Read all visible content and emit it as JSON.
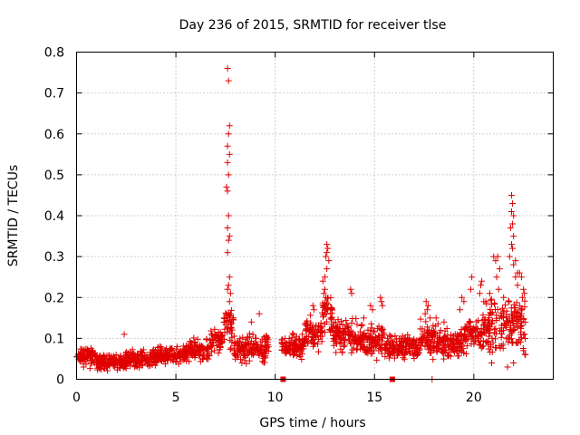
{
  "chart_data": {
    "type": "scatter",
    "marker": "+",
    "title": "Day 236 of 2015, SRMTID for receiver tlse",
    "xlabel": "GPS time / hours",
    "ylabel": "SRMTID / TECUs",
    "xlim": [
      0,
      24
    ],
    "ylim": [
      0,
      0.8
    ],
    "xticks": [
      0,
      5,
      10,
      15,
      20
    ],
    "yticks": [
      0,
      0.1,
      0.2,
      0.3,
      0.4,
      0.5,
      0.6,
      0.7,
      0.8
    ],
    "grid": true,
    "series_color": "#e00000",
    "zero_points_x": [
      10.4,
      15.9
    ],
    "envelope": [
      {
        "x0": 0.0,
        "x1": 1.0,
        "lo": 0.02,
        "hi": 0.09
      },
      {
        "x0": 1.0,
        "x1": 2.5,
        "lo": 0.015,
        "hi": 0.07
      },
      {
        "x0": 2.5,
        "x1": 4.0,
        "lo": 0.02,
        "hi": 0.08
      },
      {
        "x0": 4.0,
        "x1": 5.5,
        "lo": 0.03,
        "hi": 0.09
      },
      {
        "x0": 5.5,
        "x1": 6.7,
        "lo": 0.03,
        "hi": 0.11
      },
      {
        "x0": 6.7,
        "x1": 7.4,
        "lo": 0.05,
        "hi": 0.14
      },
      {
        "x0": 7.4,
        "x1": 7.9,
        "lo": 0.05,
        "hi": 0.2
      },
      {
        "x0": 7.9,
        "x1": 9.7,
        "lo": 0.03,
        "hi": 0.12
      },
      {
        "x0": 10.3,
        "x1": 11.5,
        "lo": 0.04,
        "hi": 0.12
      },
      {
        "x0": 11.5,
        "x1": 12.3,
        "lo": 0.06,
        "hi": 0.17
      },
      {
        "x0": 12.3,
        "x1": 12.9,
        "lo": 0.07,
        "hi": 0.24
      },
      {
        "x0": 12.9,
        "x1": 14.5,
        "lo": 0.05,
        "hi": 0.16
      },
      {
        "x0": 14.5,
        "x1": 15.5,
        "lo": 0.04,
        "hi": 0.15
      },
      {
        "x0": 15.5,
        "x1": 17.3,
        "lo": 0.04,
        "hi": 0.12
      },
      {
        "x0": 17.3,
        "x1": 18.2,
        "lo": 0.03,
        "hi": 0.16
      },
      {
        "x0": 18.2,
        "x1": 19.5,
        "lo": 0.04,
        "hi": 0.13
      },
      {
        "x0": 19.5,
        "x1": 20.5,
        "lo": 0.05,
        "hi": 0.17
      },
      {
        "x0": 20.5,
        "x1": 21.5,
        "lo": 0.04,
        "hi": 0.22
      },
      {
        "x0": 21.5,
        "x1": 22.6,
        "lo": 0.03,
        "hi": 0.24
      }
    ],
    "highlight_points": [
      {
        "x": 7.6,
        "y": 0.76
      },
      {
        "x": 7.65,
        "y": 0.73
      },
      {
        "x": 7.7,
        "y": 0.62
      },
      {
        "x": 7.65,
        "y": 0.6
      },
      {
        "x": 7.6,
        "y": 0.57
      },
      {
        "x": 7.7,
        "y": 0.55
      },
      {
        "x": 7.6,
        "y": 0.53
      },
      {
        "x": 7.65,
        "y": 0.5
      },
      {
        "x": 7.55,
        "y": 0.47
      },
      {
        "x": 7.6,
        "y": 0.46
      },
      {
        "x": 7.65,
        "y": 0.4
      },
      {
        "x": 7.6,
        "y": 0.37
      },
      {
        "x": 7.7,
        "y": 0.35
      },
      {
        "x": 7.65,
        "y": 0.34
      },
      {
        "x": 7.6,
        "y": 0.31
      },
      {
        "x": 7.7,
        "y": 0.25
      },
      {
        "x": 7.65,
        "y": 0.23
      },
      {
        "x": 7.6,
        "y": 0.22
      },
      {
        "x": 7.75,
        "y": 0.21
      },
      {
        "x": 7.7,
        "y": 0.19
      },
      {
        "x": 7.75,
        "y": 0.16
      },
      {
        "x": 12.6,
        "y": 0.33
      },
      {
        "x": 12.65,
        "y": 0.32
      },
      {
        "x": 12.6,
        "y": 0.31
      },
      {
        "x": 12.55,
        "y": 0.3
      },
      {
        "x": 12.7,
        "y": 0.29
      },
      {
        "x": 12.6,
        "y": 0.27
      },
      {
        "x": 12.5,
        "y": 0.25
      },
      {
        "x": 12.4,
        "y": 0.24
      },
      {
        "x": 12.5,
        "y": 0.22
      },
      {
        "x": 12.45,
        "y": 0.21
      },
      {
        "x": 12.55,
        "y": 0.2
      },
      {
        "x": 11.9,
        "y": 0.18
      },
      {
        "x": 11.95,
        "y": 0.17
      },
      {
        "x": 13.8,
        "y": 0.22
      },
      {
        "x": 13.85,
        "y": 0.21
      },
      {
        "x": 15.3,
        "y": 0.2
      },
      {
        "x": 15.35,
        "y": 0.19
      },
      {
        "x": 15.4,
        "y": 0.18
      },
      {
        "x": 14.8,
        "y": 0.18
      },
      {
        "x": 14.9,
        "y": 0.17
      },
      {
        "x": 9.2,
        "y": 0.16
      },
      {
        "x": 8.8,
        "y": 0.14
      },
      {
        "x": 2.4,
        "y": 0.11
      },
      {
        "x": 4.2,
        "y": 0.08
      },
      {
        "x": 17.6,
        "y": 0.19
      },
      {
        "x": 17.7,
        "y": 0.18
      },
      {
        "x": 17.65,
        "y": 0.17
      },
      {
        "x": 17.55,
        "y": 0.16
      },
      {
        "x": 17.8,
        "y": 0.15
      },
      {
        "x": 18.1,
        "y": 0.15
      },
      {
        "x": 17.9,
        "y": 0.0
      },
      {
        "x": 18.5,
        "y": 0.14
      },
      {
        "x": 19.4,
        "y": 0.2
      },
      {
        "x": 19.5,
        "y": 0.19
      },
      {
        "x": 19.3,
        "y": 0.17
      },
      {
        "x": 19.9,
        "y": 0.25
      },
      {
        "x": 19.85,
        "y": 0.22
      },
      {
        "x": 20.3,
        "y": 0.21
      },
      {
        "x": 20.4,
        "y": 0.24
      },
      {
        "x": 20.35,
        "y": 0.23
      },
      {
        "x": 20.5,
        "y": 0.19
      },
      {
        "x": 20.8,
        "y": 0.21
      },
      {
        "x": 21.0,
        "y": 0.3
      },
      {
        "x": 21.1,
        "y": 0.29
      },
      {
        "x": 21.2,
        "y": 0.3
      },
      {
        "x": 21.3,
        "y": 0.27
      },
      {
        "x": 21.15,
        "y": 0.25
      },
      {
        "x": 21.25,
        "y": 0.22
      },
      {
        "x": 21.5,
        "y": 0.2
      },
      {
        "x": 21.9,
        "y": 0.45
      },
      {
        "x": 21.95,
        "y": 0.43
      },
      {
        "x": 21.9,
        "y": 0.41
      },
      {
        "x": 22.0,
        "y": 0.4
      },
      {
        "x": 21.95,
        "y": 0.38
      },
      {
        "x": 21.85,
        "y": 0.37
      },
      {
        "x": 22.0,
        "y": 0.35
      },
      {
        "x": 21.9,
        "y": 0.33
      },
      {
        "x": 21.95,
        "y": 0.32
      },
      {
        "x": 21.8,
        "y": 0.3
      },
      {
        "x": 22.1,
        "y": 0.29
      },
      {
        "x": 22.0,
        "y": 0.28
      },
      {
        "x": 22.2,
        "y": 0.26
      },
      {
        "x": 22.3,
        "y": 0.26
      },
      {
        "x": 22.1,
        "y": 0.25
      },
      {
        "x": 22.4,
        "y": 0.25
      },
      {
        "x": 22.2,
        "y": 0.23
      },
      {
        "x": 22.5,
        "y": 0.22
      },
      {
        "x": 22.55,
        "y": 0.21
      },
      {
        "x": 22.45,
        "y": 0.2
      },
      {
        "x": 22.3,
        "y": 0.18
      },
      {
        "x": 22.4,
        "y": 0.16
      },
      {
        "x": 21.7,
        "y": 0.03
      },
      {
        "x": 22.0,
        "y": 0.04
      },
      {
        "x": 22.5,
        "y": 0.07
      },
      {
        "x": 22.6,
        "y": 0.06
      },
      {
        "x": 20.9,
        "y": 0.04
      }
    ]
  }
}
